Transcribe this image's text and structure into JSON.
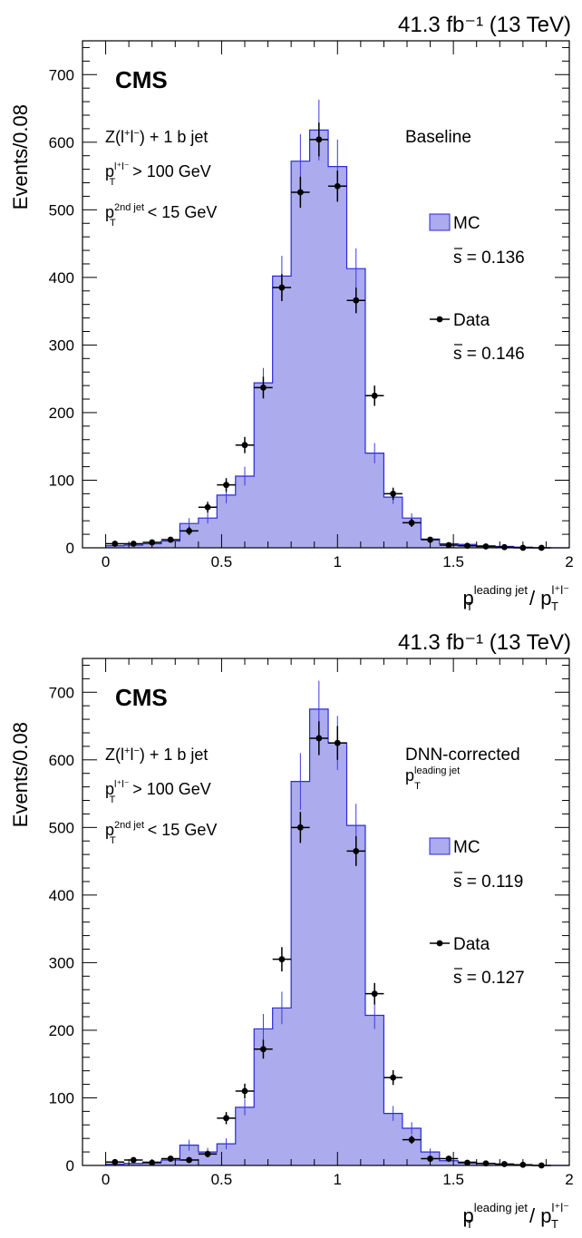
{
  "chart_data": [
    {
      "type": "histogram",
      "lumi": "41.3 fb⁻¹ (13 TeV)",
      "cms": "CMS",
      "selection": [
        "Z(l⁺l⁻) + 1 b jet",
        "pT^l⁺l⁻ > 100 GeV",
        "pT^2nd jet < 15 GeV"
      ],
      "variant_label": "Baseline",
      "ylabel": "Events/0.08",
      "xlabel": "pT^leading jet / pT^l⁺l⁻",
      "xlim": [
        -0.1,
        2.0
      ],
      "ylim": [
        0,
        750
      ],
      "xticks": [
        0,
        0.5,
        1,
        1.5,
        2
      ],
      "xtick_labels": [
        "0",
        "0.5",
        "1",
        "1.5",
        "2"
      ],
      "yticks": [
        0,
        100,
        200,
        300,
        400,
        500,
        600,
        700
      ],
      "ytick_labels": [
        "0",
        "100",
        "200",
        "300",
        "400",
        "500",
        "600",
        "700"
      ],
      "bin_width": 0.08,
      "bin_edges": [
        0,
        0.08,
        0.16,
        0.24,
        0.32,
        0.4,
        0.48,
        0.56,
        0.64,
        0.72,
        0.8,
        0.88,
        0.96,
        1.04,
        1.12,
        1.2,
        1.28,
        1.36,
        1.44,
        1.52,
        1.6,
        1.68,
        1.76,
        1.84,
        1.92
      ],
      "legend": {
        "mc_label": "MC",
        "mc_s": "s = 0.136",
        "data_label": "Data",
        "data_s": "s = 0.146"
      },
      "series": [
        {
          "name": "MC",
          "values": [
            3,
            4,
            6,
            10,
            36,
            44,
            78,
            106,
            244,
            402,
            572,
            618,
            564,
            413,
            140,
            75,
            44,
            13,
            6,
            5,
            3,
            2,
            1,
            0
          ],
          "errors": [
            1,
            1,
            2,
            2,
            8,
            8,
            12,
            14,
            22,
            30,
            40,
            45,
            40,
            30,
            15,
            10,
            7,
            3,
            2,
            2,
            1,
            1,
            1,
            0
          ]
        },
        {
          "name": "Data",
          "values": [
            6,
            6,
            8,
            12,
            25,
            60,
            93,
            152,
            237,
            385,
            526,
            604,
            535,
            366,
            225,
            80,
            37,
            12,
            4,
            3,
            2,
            1,
            0,
            0
          ],
          "errors": [
            3,
            3,
            3,
            4,
            6,
            8,
            10,
            12,
            16,
            20,
            23,
            25,
            23,
            19,
            15,
            9,
            6,
            4,
            2,
            2,
            2,
            1,
            1,
            1
          ]
        }
      ]
    },
    {
      "type": "histogram",
      "lumi": "41.3 fb⁻¹ (13 TeV)",
      "cms": "CMS",
      "selection": [
        "Z(l⁺l⁻) + 1 b jet",
        "pT^l⁺l⁻ > 100 GeV",
        "pT^2nd jet < 15 GeV"
      ],
      "variant_label": "DNN-corrected",
      "variant_sub": "pT^leading jet",
      "ylabel": "Events/0.08",
      "xlabel": "pT^leading jet / pT^l⁺l⁻",
      "xlim": [
        -0.1,
        2.0
      ],
      "ylim": [
        0,
        750
      ],
      "xticks": [
        0,
        0.5,
        1,
        1.5,
        2
      ],
      "xtick_labels": [
        "0",
        "0.5",
        "1",
        "1.5",
        "2"
      ],
      "yticks": [
        0,
        100,
        200,
        300,
        400,
        500,
        600,
        700
      ],
      "ytick_labels": [
        "0",
        "100",
        "200",
        "300",
        "400",
        "500",
        "600",
        "700"
      ],
      "bin_width": 0.08,
      "bin_edges": [
        0,
        0.08,
        0.16,
        0.24,
        0.32,
        0.4,
        0.48,
        0.56,
        0.64,
        0.72,
        0.8,
        0.88,
        0.96,
        1.04,
        1.12,
        1.2,
        1.28,
        1.36,
        1.44,
        1.52,
        1.6,
        1.68,
        1.76,
        1.84,
        1.92
      ],
      "legend": {
        "mc_label": "MC",
        "mc_s": "s = 0.119",
        "data_label": "Data",
        "data_s": "s = 0.127"
      },
      "series": [
        {
          "name": "MC",
          "values": [
            2,
            3,
            5,
            8,
            30,
            20,
            32,
            86,
            202,
            233,
            568,
            675,
            625,
            503,
            222,
            77,
            55,
            20,
            7,
            5,
            3,
            2,
            1,
            0
          ],
          "errors": [
            1,
            1,
            2,
            2,
            8,
            6,
            8,
            12,
            22,
            24,
            42,
            42,
            40,
            32,
            20,
            11,
            9,
            5,
            2,
            2,
            1,
            1,
            1,
            0
          ]
        },
        {
          "name": "Data",
          "values": [
            5,
            8,
            4,
            10,
            8,
            17,
            70,
            110,
            172,
            305,
            500,
            632,
            625,
            465,
            254,
            130,
            38,
            10,
            10,
            4,
            3,
            2,
            1,
            0
          ],
          "errors": [
            3,
            3,
            2,
            3,
            3,
            5,
            9,
            11,
            14,
            18,
            23,
            25,
            25,
            22,
            16,
            11,
            6,
            3,
            3,
            2,
            2,
            1,
            1,
            1
          ]
        }
      ]
    }
  ]
}
